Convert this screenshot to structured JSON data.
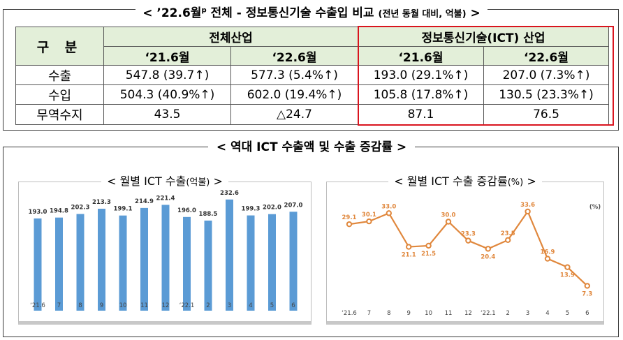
{
  "comparison": {
    "title": {
      "open": "< ’22.6월",
      "sup": "p",
      "main": " 전체 - 정보통신기술 수출입 비교 ",
      "note": "(전년 동월 대비, 억불)",
      "close": " >"
    },
    "corner_label": "구 분",
    "group_all": "전체산업",
    "group_ict": "정보통신기술(ICT) 산업",
    "periods": [
      "‘21.6월",
      "‘22.6월",
      "‘21.6월",
      "‘22.6월"
    ],
    "rows": [
      {
        "label": "수출",
        "cells": [
          "547.8 (39.7↑)",
          "577.3 (5.4%↑)",
          "193.0 (29.1%↑)",
          "207.0 (7.3%↑)"
        ]
      },
      {
        "label": "수입",
        "cells": [
          "504.3 (40.9%↑)",
          "602.0 (19.4%↑)",
          "105.8 (17.8%↑)",
          "130.5 (23.3%↑)"
        ]
      },
      {
        "label": "무역수지",
        "cells": [
          "43.5",
          "△24.7",
          "87.1",
          "76.5"
        ]
      }
    ],
    "highlight_color": "#d9141e",
    "header_bg": "#e3efd9"
  },
  "section2": {
    "title": "< 역대 ICT 수출액 및 수출 증감률 >"
  },
  "chart_data": [
    {
      "type": "bar",
      "title": "< 월별 ICT 수출",
      "title_unit": "(억불)",
      "title_close": " >",
      "categories": [
        "‘21.6",
        "7",
        "8",
        "9",
        "10",
        "11",
        "12",
        "‘22.1",
        "2",
        "3",
        "4",
        "5",
        "6"
      ],
      "values": [
        193.0,
        194.8,
        202.3,
        213.3,
        199.1,
        214.9,
        221.4,
        196.0,
        188.5,
        232.6,
        199.3,
        202.0,
        207.0
      ],
      "value_labels": [
        "193.0",
        "194.8",
        "202.3",
        "213.3",
        "199.1",
        "214.9",
        "221.4",
        "196.0",
        "188.5",
        "232.6",
        "199.3",
        "202.0",
        "207.0"
      ],
      "ylim": [
        0,
        260
      ],
      "color": "#5b9bd5",
      "grid": false
    },
    {
      "type": "line",
      "title": "< 월별 ICT 수출 증감률",
      "title_unit": "(%)",
      "title_close": " >",
      "unit_label": "(%)",
      "categories": [
        "‘21.6",
        "7",
        "8",
        "9",
        "10",
        "11",
        "12",
        "‘22.1",
        "2",
        "3",
        "4",
        "5",
        "6"
      ],
      "values": [
        29.1,
        30.1,
        33.0,
        21.1,
        21.5,
        30.0,
        23.3,
        20.4,
        23.5,
        33.6,
        16.9,
        13.9,
        7.3
      ],
      "value_labels": [
        "29.1",
        "30.1",
        "33.0",
        "21.1",
        "21.5",
        "30.0",
        "23.3",
        "20.4",
        "23.5",
        "33.6",
        "16.9",
        "13.9",
        "7.3"
      ],
      "ylim": [
        0,
        40
      ],
      "color": "#e0873c",
      "grid": false
    }
  ]
}
